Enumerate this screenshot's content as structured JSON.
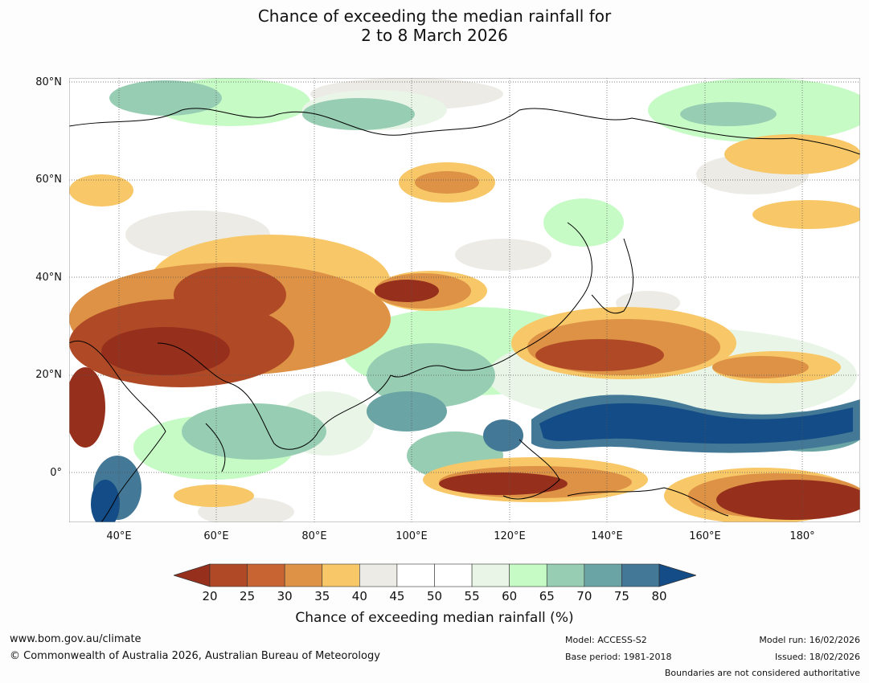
{
  "title": {
    "line1": "Chance of exceeding the median rainfall for",
    "line2": "2 to 8 March 2026"
  },
  "map": {
    "lat_labels": [
      "80°N",
      "60°N",
      "40°N",
      "20°N",
      "0°"
    ],
    "lon_labels": [
      "40°E",
      "60°E",
      "80°E",
      "100°E",
      "120°E",
      "140°E",
      "160°E",
      "180°"
    ]
  },
  "colorbar": {
    "label": "Chance of exceeding median rainfall (%)",
    "ticks": [
      "20",
      "25",
      "30",
      "35",
      "40",
      "45",
      "50",
      "55",
      "60",
      "65",
      "70",
      "75",
      "80"
    ],
    "colors": [
      "#962f1c",
      "#b04a26",
      "#c86432",
      "#dd9246",
      "#f7c768",
      "#ecebe6",
      "#ffffff",
      "#ffffff",
      "#e9f6e7",
      "#c7fbc6",
      "#97cdb3",
      "#6aa4a4",
      "#437896",
      "#134c86"
    ]
  },
  "footer": {
    "website": "www.bom.gov.au/climate",
    "copyright": "© Commonwealth of Australia 2026, Australian Bureau of Meteorology",
    "model": "Model: ACCESS-S2",
    "base_period": "Base period: 1981-2018",
    "model_run": "Model run: 16/02/2026",
    "issued": "Issued: 18/02/2026",
    "disclaimer": "Boundaries are not considered authoritative"
  }
}
